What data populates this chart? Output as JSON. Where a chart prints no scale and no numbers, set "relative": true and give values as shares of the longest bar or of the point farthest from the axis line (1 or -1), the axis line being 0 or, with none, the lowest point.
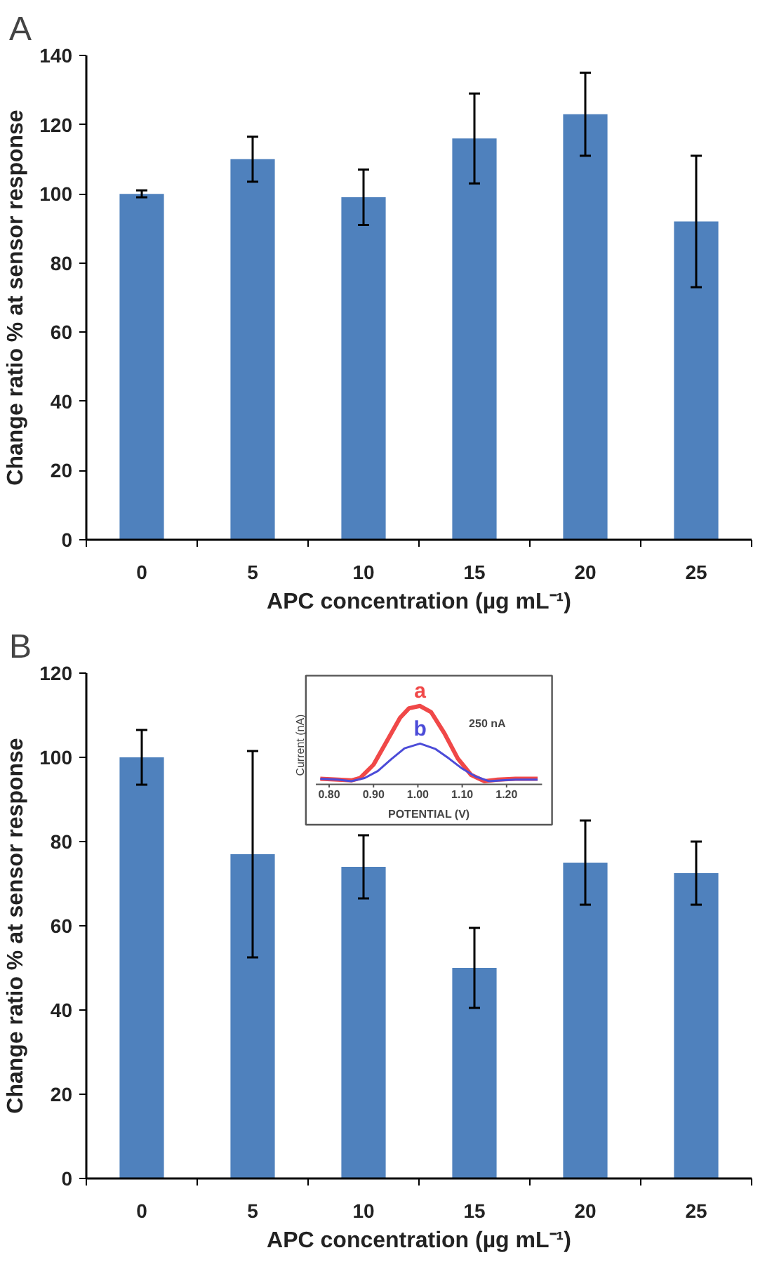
{
  "chart_data": [
    {
      "type": "bar",
      "title": "A",
      "xlabel": "APC concentration (µg mL⁻¹)",
      "ylabel": "Change ratio % at sensor response",
      "categories": [
        "0",
        "5",
        "10",
        "15",
        "20",
        "25"
      ],
      "color": "#4f81bd",
      "values": [
        100,
        110,
        99,
        116,
        123,
        92
      ],
      "errors": [
        1,
        6.5,
        8,
        13,
        12,
        19
      ],
      "ylim": [
        0,
        140
      ],
      "yticks": [
        0,
        20,
        40,
        60,
        80,
        100,
        120,
        140
      ]
    },
    {
      "type": "bar",
      "title": "B",
      "xlabel": "APC concentration (µg mL⁻¹)",
      "ylabel": "Change ratio % at sensor response",
      "categories": [
        "0",
        "5",
        "10",
        "15",
        "20",
        "25"
      ],
      "color": "#4f81bd",
      "values": [
        100,
        77,
        74,
        50,
        75,
        72.5
      ],
      "errors": [
        6.5,
        24.5,
        7.5,
        9.5,
        10,
        7.5
      ],
      "ylim": [
        0,
        120
      ],
      "yticks": [
        0,
        20,
        40,
        60,
        80,
        100,
        120
      ]
    },
    {
      "type": "line",
      "relative": true,
      "xlabel": "POTENTIAL (V)",
      "ylabel": "Current (nA)",
      "tick_labels": "x",
      "xlim": [
        0.77,
        1.28
      ],
      "xticks": [
        {
          "value": 0.8,
          "label": "0.80"
        },
        {
          "value": 0.9,
          "label": "0.90"
        },
        {
          "value": 1.0,
          "label": "1.00"
        },
        {
          "value": 1.1,
          "label": "1.10"
        },
        {
          "value": 1.2,
          "label": "1.20"
        }
      ],
      "annotations": [
        "250 nA"
      ],
      "series": [
        {
          "name": "a",
          "color": "#f04848",
          "x": [
            0.78,
            0.82,
            0.85,
            0.87,
            0.9,
            0.93,
            0.96,
            0.98,
            1.005,
            1.03,
            1.06,
            1.09,
            1.12,
            1.15,
            1.18,
            1.22,
            1.27
          ],
          "values": [
            0.07,
            0.06,
            0.05,
            0.08,
            0.25,
            0.55,
            0.85,
            0.97,
            1.0,
            0.92,
            0.65,
            0.33,
            0.12,
            0.04,
            0.06,
            0.07,
            0.07
          ]
        },
        {
          "name": "b",
          "color": "#4b4bd8",
          "x": [
            0.78,
            0.82,
            0.85,
            0.88,
            0.91,
            0.94,
            0.97,
            1.005,
            1.04,
            1.07,
            1.1,
            1.13,
            1.16,
            1.19,
            1.22,
            1.27
          ],
          "values": [
            0.07,
            0.06,
            0.04,
            0.08,
            0.17,
            0.32,
            0.46,
            0.52,
            0.45,
            0.33,
            0.2,
            0.1,
            0.04,
            0.05,
            0.06,
            0.06
          ]
        }
      ]
    }
  ]
}
